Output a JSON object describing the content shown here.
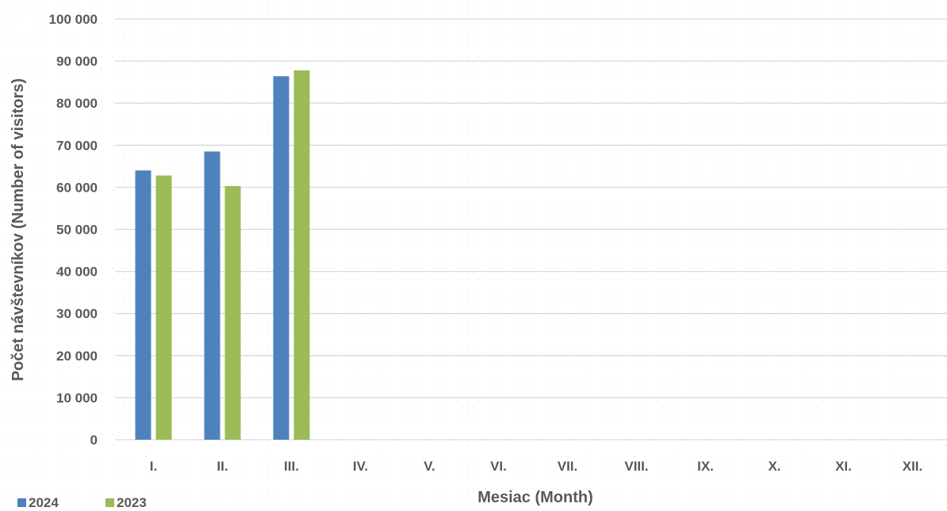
{
  "chart_data": {
    "type": "bar",
    "title": "",
    "xlabel": "Mesiac (Month)",
    "ylabel": "Počet návštevníkov (Number of visitors)",
    "ylim": [
      0,
      100000
    ],
    "yticks": [
      {
        "value": 0,
        "label": "0"
      },
      {
        "value": 10000,
        "label": "10 000"
      },
      {
        "value": 20000,
        "label": "20 000"
      },
      {
        "value": 30000,
        "label": "30 000"
      },
      {
        "value": 40000,
        "label": "40 000"
      },
      {
        "value": 50000,
        "label": "50 000"
      },
      {
        "value": 60000,
        "label": "60 000"
      },
      {
        "value": 70000,
        "label": "70 000"
      },
      {
        "value": 80000,
        "label": "80 000"
      },
      {
        "value": 90000,
        "label": "90 000"
      },
      {
        "value": 100000,
        "label": "100 000"
      }
    ],
    "categories": [
      "I.",
      "II.",
      "III.",
      "IV.",
      "V.",
      "VI.",
      "VII.",
      "VIII.",
      "IX.",
      "X.",
      "XI.",
      "XII."
    ],
    "series": [
      {
        "name": "2024",
        "color": "#4f81bd",
        "values": [
          64000,
          68500,
          86400,
          null,
          null,
          null,
          null,
          null,
          null,
          null,
          null,
          null
        ]
      },
      {
        "name": "2023",
        "color": "#9bbb59",
        "values": [
          62800,
          60300,
          87800,
          null,
          null,
          null,
          null,
          null,
          null,
          null,
          null,
          null
        ]
      }
    ],
    "grid": true,
    "legend_position": "bottom-left"
  }
}
